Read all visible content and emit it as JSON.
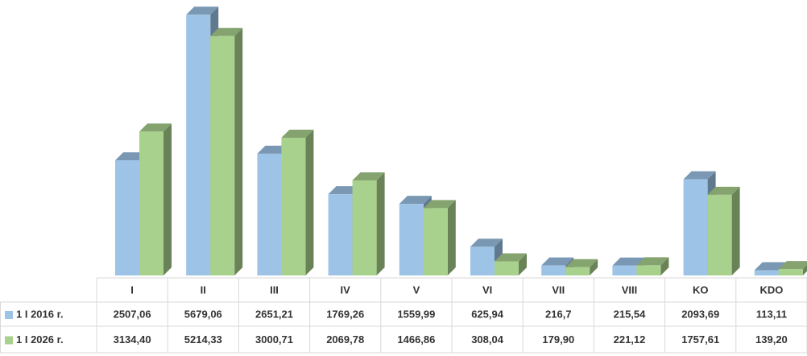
{
  "chart_data": {
    "type": "bar3d",
    "categories": [
      "I",
      "II",
      "III",
      "IV",
      "V",
      "VI",
      "VII",
      "VIII",
      "KO",
      "KDO"
    ],
    "series": [
      {
        "name": "1 I 2016 r.",
        "color": "#9dc3e6",
        "values": [
          2507.06,
          5679.06,
          2651.21,
          1769.26,
          1559.99,
          625.94,
          216.7,
          215.54,
          2093.69,
          113.11
        ],
        "value_labels": [
          "2507,06",
          "5679,06",
          "2651,21",
          "1769,26",
          "1559,99",
          "625,94",
          "216,7",
          "215,54",
          "2093,69",
          "113,11"
        ]
      },
      {
        "name": "1 I 2026 r.",
        "color": "#a9d18e",
        "values": [
          3134.4,
          5214.33,
          3000.71,
          2069.78,
          1466.86,
          308.04,
          179.9,
          221.12,
          1757.61,
          139.2
        ],
        "value_labels": [
          "3134,40",
          "5214,33",
          "3000,71",
          "2069,78",
          "1466,86",
          "308,04",
          "179,90",
          "221,12",
          "1757,61",
          "139,20"
        ]
      }
    ]
  }
}
